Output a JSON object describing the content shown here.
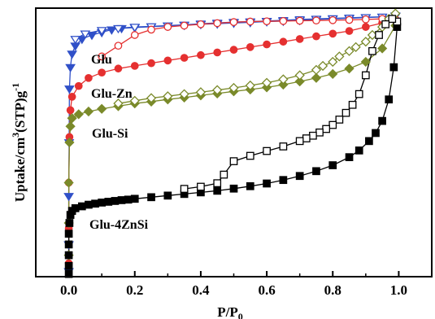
{
  "chart_data": {
    "type": "scatter",
    "xlabel": {
      "main": "P/P",
      "sub": "0"
    },
    "ylabel": {
      "main": "Uptake/cm",
      "sup1": "3",
      "mid": "(STP)g",
      "sup2": "-1"
    },
    "xlim": [
      -0.1,
      1.1
    ],
    "ylim": [
      0,
      1
    ],
    "yticks_labeled": false,
    "x_ticks": [
      0.0,
      0.2,
      0.4,
      0.6,
      0.8,
      1.0
    ],
    "x_tick_labels": [
      "0.0",
      "0.2",
      "0.4",
      "0.6",
      "0.8",
      "1.0"
    ],
    "series": [
      {
        "name": "Glu",
        "color": "#3050c8",
        "adsorption_marker": "triangle-down-filled",
        "desorption_marker": "triangle-down-open",
        "adsorption": [
          [
            0.0,
            0.02
          ],
          [
            0.0,
            0.12
          ],
          [
            0.0,
            0.3
          ],
          [
            0.001,
            0.5
          ],
          [
            0.002,
            0.7
          ],
          [
            0.005,
            0.78
          ],
          [
            0.01,
            0.83
          ],
          [
            0.02,
            0.86
          ],
          [
            0.04,
            0.885
          ],
          [
            0.07,
            0.9
          ],
          [
            0.1,
            0.91
          ],
          [
            0.13,
            0.92
          ],
          [
            0.16,
            0.925
          ],
          [
            0.2,
            0.928
          ],
          [
            0.25,
            0.931
          ],
          [
            0.3,
            0.934
          ],
          [
            0.35,
            0.937
          ],
          [
            0.4,
            0.94
          ],
          [
            0.45,
            0.942
          ],
          [
            0.5,
            0.945
          ],
          [
            0.55,
            0.947
          ],
          [
            0.6,
            0.95
          ],
          [
            0.65,
            0.952
          ],
          [
            0.7,
            0.955
          ],
          [
            0.75,
            0.958
          ],
          [
            0.8,
            0.96
          ],
          [
            0.85,
            0.962
          ],
          [
            0.9,
            0.965
          ],
          [
            0.95,
            0.967
          ],
          [
            0.99,
            0.97
          ]
        ],
        "desorption": [
          [
            0.99,
            0.972
          ],
          [
            0.95,
            0.968
          ],
          [
            0.9,
            0.966
          ],
          [
            0.85,
            0.964
          ],
          [
            0.8,
            0.962
          ],
          [
            0.75,
            0.96
          ],
          [
            0.7,
            0.958
          ],
          [
            0.65,
            0.955
          ],
          [
            0.6,
            0.952
          ],
          [
            0.55,
            0.95
          ],
          [
            0.5,
            0.948
          ],
          [
            0.45,
            0.945
          ],
          [
            0.4,
            0.942
          ],
          [
            0.35,
            0.938
          ],
          [
            0.3,
            0.935
          ],
          [
            0.25,
            0.932
          ],
          [
            0.2,
            0.93
          ],
          [
            0.15,
            0.925
          ],
          [
            0.1,
            0.918
          ],
          [
            0.05,
            0.905
          ],
          [
            0.02,
            0.885
          ]
        ]
      },
      {
        "name": "Glu-Zn",
        "color": "#e53030",
        "adsorption_marker": "circle-filled",
        "desorption_marker": "circle-open",
        "adsorption": [
          [
            0.0,
            0.05
          ],
          [
            0.0,
            0.18
          ],
          [
            0.0,
            0.35
          ],
          [
            0.002,
            0.52
          ],
          [
            0.005,
            0.62
          ],
          [
            0.01,
            0.67
          ],
          [
            0.03,
            0.71
          ],
          [
            0.06,
            0.74
          ],
          [
            0.1,
            0.76
          ],
          [
            0.15,
            0.775
          ],
          [
            0.2,
            0.785
          ],
          [
            0.25,
            0.795
          ],
          [
            0.3,
            0.805
          ],
          [
            0.35,
            0.815
          ],
          [
            0.4,
            0.825
          ],
          [
            0.45,
            0.835
          ],
          [
            0.5,
            0.845
          ],
          [
            0.55,
            0.855
          ],
          [
            0.6,
            0.865
          ],
          [
            0.65,
            0.875
          ],
          [
            0.7,
            0.885
          ],
          [
            0.75,
            0.895
          ],
          [
            0.8,
            0.905
          ],
          [
            0.85,
            0.915
          ],
          [
            0.9,
            0.93
          ],
          [
            0.95,
            0.945
          ],
          [
            0.99,
            0.955
          ]
        ],
        "desorption": [
          [
            0.99,
            0.958
          ],
          [
            0.95,
            0.96
          ],
          [
            0.9,
            0.958
          ],
          [
            0.85,
            0.956
          ],
          [
            0.8,
            0.955
          ],
          [
            0.75,
            0.954
          ],
          [
            0.7,
            0.953
          ],
          [
            0.65,
            0.952
          ],
          [
            0.6,
            0.951
          ],
          [
            0.55,
            0.95
          ],
          [
            0.5,
            0.948
          ],
          [
            0.45,
            0.944
          ],
          [
            0.4,
            0.94
          ],
          [
            0.35,
            0.935
          ],
          [
            0.3,
            0.93
          ],
          [
            0.25,
            0.92
          ],
          [
            0.2,
            0.9
          ],
          [
            0.15,
            0.86
          ],
          [
            0.1,
            0.82
          ]
        ]
      },
      {
        "name": "Glu-Si",
        "color": "#7a8a2a",
        "adsorption_marker": "diamond-filled",
        "desorption_marker": "diamond-open",
        "adsorption": [
          [
            0.0,
            0.08
          ],
          [
            0.0,
            0.2
          ],
          [
            0.0,
            0.35
          ],
          [
            0.002,
            0.5
          ],
          [
            0.005,
            0.56
          ],
          [
            0.01,
            0.59
          ],
          [
            0.03,
            0.605
          ],
          [
            0.06,
            0.615
          ],
          [
            0.1,
            0.625
          ],
          [
            0.15,
            0.635
          ],
          [
            0.2,
            0.645
          ],
          [
            0.25,
            0.652
          ],
          [
            0.3,
            0.66
          ],
          [
            0.35,
            0.667
          ],
          [
            0.4,
            0.675
          ],
          [
            0.45,
            0.682
          ],
          [
            0.5,
            0.69
          ],
          [
            0.55,
            0.697
          ],
          [
            0.6,
            0.705
          ],
          [
            0.65,
            0.715
          ],
          [
            0.7,
            0.727
          ],
          [
            0.75,
            0.74
          ],
          [
            0.8,
            0.755
          ],
          [
            0.85,
            0.775
          ],
          [
            0.9,
            0.8
          ],
          [
            0.95,
            0.85
          ],
          [
            0.99,
            0.935
          ]
        ],
        "desorption": [
          [
            0.99,
            0.98
          ],
          [
            0.97,
            0.96
          ],
          [
            0.95,
            0.93
          ],
          [
            0.92,
            0.9
          ],
          [
            0.9,
            0.875
          ],
          [
            0.87,
            0.855
          ],
          [
            0.85,
            0.84
          ],
          [
            0.82,
            0.82
          ],
          [
            0.8,
            0.8
          ],
          [
            0.77,
            0.785
          ],
          [
            0.75,
            0.77
          ],
          [
            0.7,
            0.75
          ],
          [
            0.65,
            0.735
          ],
          [
            0.6,
            0.722
          ],
          [
            0.55,
            0.712
          ],
          [
            0.5,
            0.703
          ],
          [
            0.45,
            0.695
          ],
          [
            0.4,
            0.687
          ],
          [
            0.35,
            0.68
          ],
          [
            0.3,
            0.672
          ],
          [
            0.25,
            0.665
          ],
          [
            0.2,
            0.655
          ],
          [
            0.15,
            0.645
          ]
        ]
      },
      {
        "name": "Glu-4ZnSi",
        "color": "#000000",
        "adsorption_marker": "square-filled",
        "desorption_marker": "square-open",
        "adsorption": [
          [
            0.0,
            0.01
          ],
          [
            0.0,
            0.04
          ],
          [
            0.0,
            0.08
          ],
          [
            0.0,
            0.12
          ],
          [
            0.0,
            0.16
          ],
          [
            0.002,
            0.2
          ],
          [
            0.005,
            0.23
          ],
          [
            0.01,
            0.245
          ],
          [
            0.02,
            0.255
          ],
          [
            0.04,
            0.262
          ],
          [
            0.06,
            0.268
          ],
          [
            0.08,
            0.272
          ],
          [
            0.1,
            0.276
          ],
          [
            0.12,
            0.279
          ],
          [
            0.14,
            0.282
          ],
          [
            0.16,
            0.285
          ],
          [
            0.18,
            0.287
          ],
          [
            0.2,
            0.29
          ],
          [
            0.25,
            0.296
          ],
          [
            0.3,
            0.302
          ],
          [
            0.35,
            0.308
          ],
          [
            0.4,
            0.314
          ],
          [
            0.45,
            0.32
          ],
          [
            0.5,
            0.328
          ],
          [
            0.55,
            0.337
          ],
          [
            0.6,
            0.347
          ],
          [
            0.65,
            0.36
          ],
          [
            0.7,
            0.375
          ],
          [
            0.75,
            0.393
          ],
          [
            0.8,
            0.415
          ],
          [
            0.85,
            0.445
          ],
          [
            0.88,
            0.47
          ],
          [
            0.91,
            0.505
          ],
          [
            0.93,
            0.535
          ],
          [
            0.95,
            0.58
          ],
          [
            0.97,
            0.66
          ],
          [
            0.985,
            0.78
          ],
          [
            0.995,
            0.93
          ]
        ],
        "desorption": [
          [
            0.995,
            0.95
          ],
          [
            0.98,
            0.96
          ],
          [
            0.96,
            0.94
          ],
          [
            0.94,
            0.9
          ],
          [
            0.92,
            0.84
          ],
          [
            0.9,
            0.75
          ],
          [
            0.88,
            0.68
          ],
          [
            0.86,
            0.64
          ],
          [
            0.84,
            0.61
          ],
          [
            0.82,
            0.585
          ],
          [
            0.8,
            0.565
          ],
          [
            0.78,
            0.55
          ],
          [
            0.76,
            0.537
          ],
          [
            0.74,
            0.525
          ],
          [
            0.72,
            0.515
          ],
          [
            0.7,
            0.505
          ],
          [
            0.65,
            0.485
          ],
          [
            0.6,
            0.468
          ],
          [
            0.55,
            0.45
          ],
          [
            0.5,
            0.43
          ],
          [
            0.47,
            0.38
          ],
          [
            0.45,
            0.348
          ],
          [
            0.4,
            0.335
          ],
          [
            0.35,
            0.327
          ]
        ]
      }
    ]
  }
}
